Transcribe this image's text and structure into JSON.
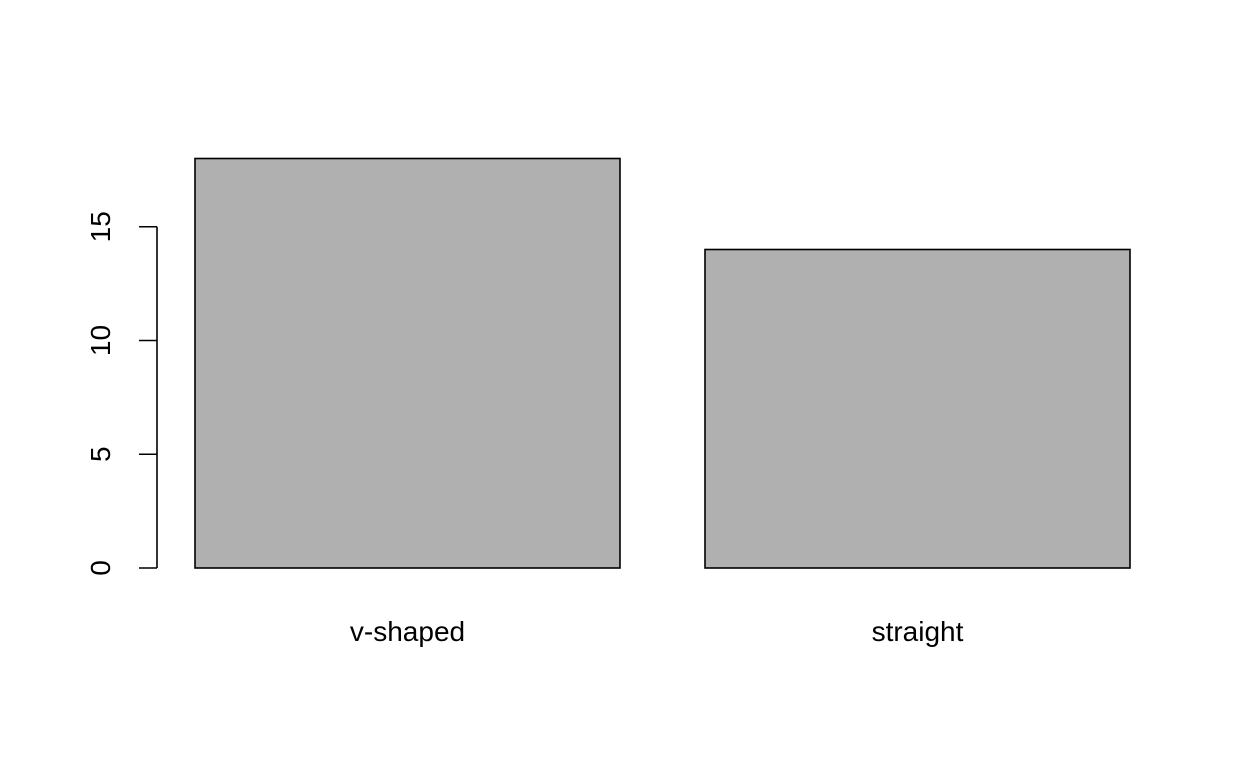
{
  "chart_data": {
    "type": "bar",
    "categories": [
      "v-shaped",
      "straight"
    ],
    "values": [
      18,
      14
    ],
    "title": "",
    "xlabel": "",
    "ylabel": "",
    "ylim": [
      0,
      18
    ],
    "yticks": [
      0,
      5,
      10,
      15
    ],
    "grid": false,
    "bar_color": "#b0b0b0",
    "border_color": "#000000"
  }
}
